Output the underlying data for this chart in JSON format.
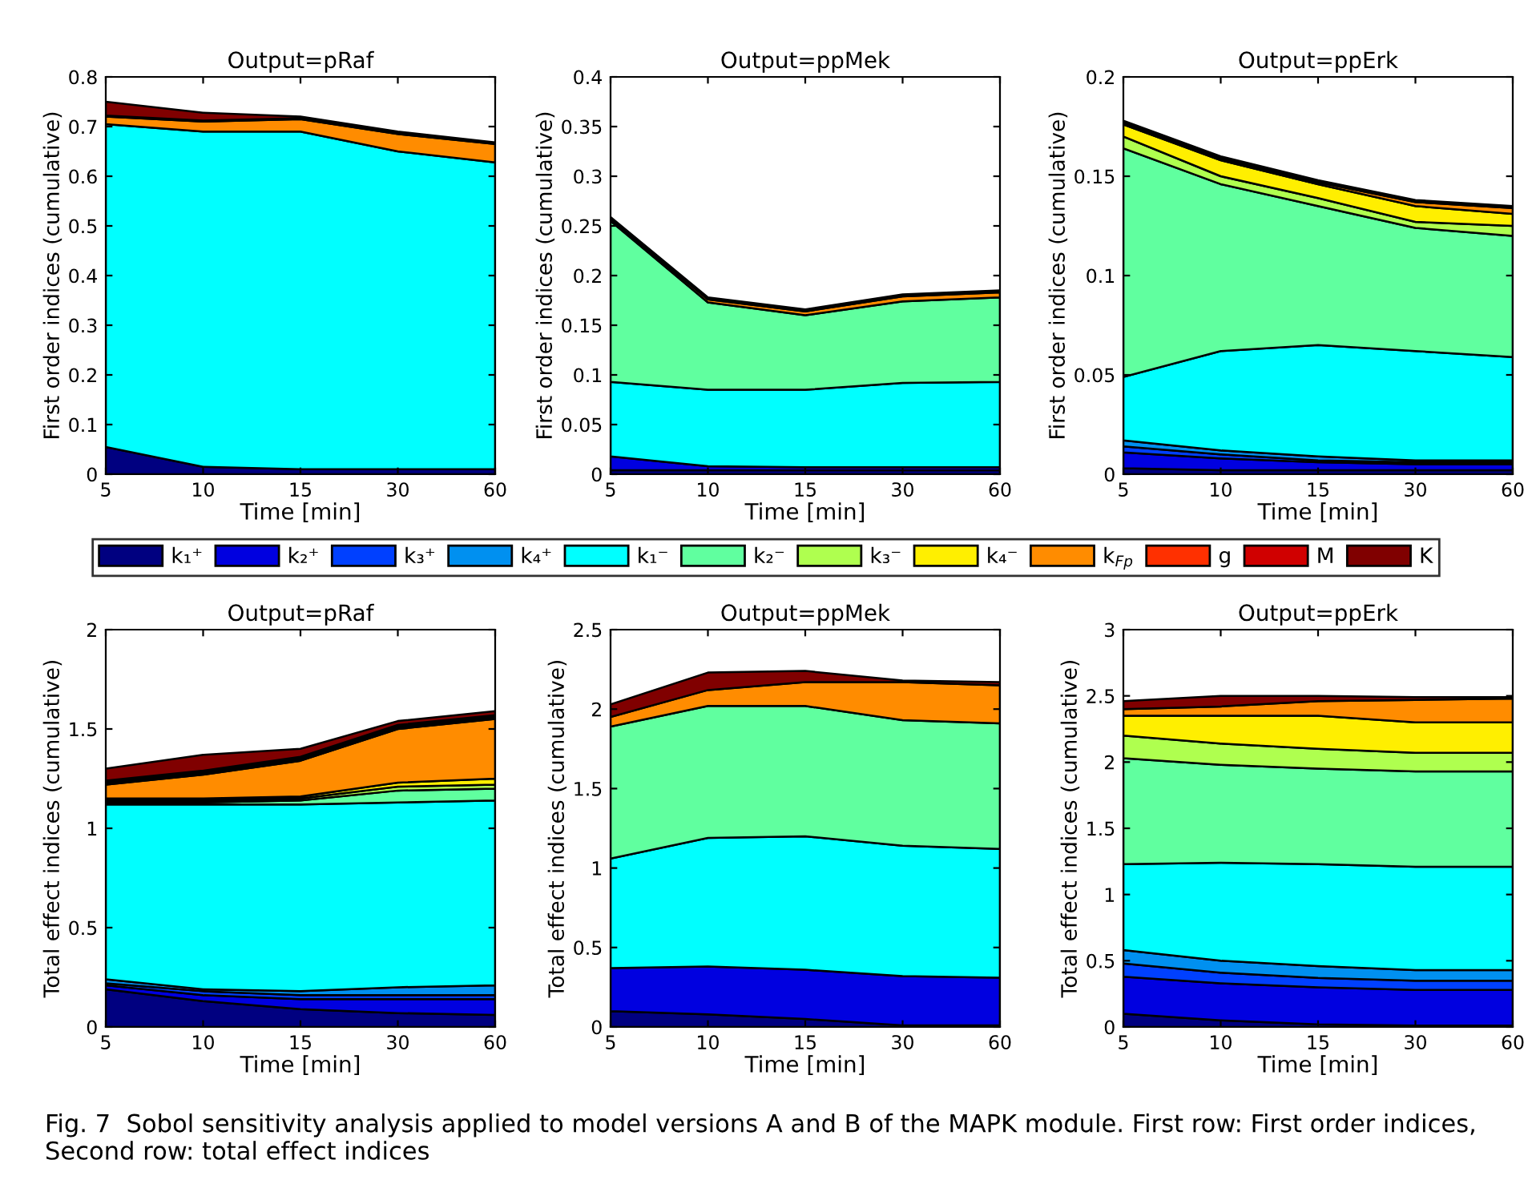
{
  "chart_data": [
    {
      "type": "area",
      "stacked": true,
      "title": "Output=pRaf",
      "xlabel": "Time [min]",
      "ylabel": "First order indices (cumulative)",
      "categories": [
        "5",
        "10",
        "15",
        "30",
        "60"
      ],
      "ylim": [
        0,
        0.8
      ],
      "yticks": [
        0,
        0.1,
        0.2,
        0.3,
        0.4,
        0.5,
        0.6,
        0.7,
        0.8
      ],
      "legend": "bottom",
      "series": [
        {
          "name": "k₁⁺",
          "color": "#000080",
          "values": [
            0.055,
            0.015,
            0.01,
            0.01,
            0.01
          ]
        },
        {
          "name": "k₂⁺",
          "color": "#0000e0",
          "values": [
            null,
            null,
            null,
            null,
            null
          ]
        },
        {
          "name": "k₃⁺",
          "color": "#0040ff",
          "values": [
            null,
            null,
            null,
            null,
            null
          ]
        },
        {
          "name": "k₄⁺",
          "color": "#0090f0",
          "values": [
            null,
            null,
            null,
            null,
            null
          ]
        },
        {
          "name": "k₁⁻",
          "color": "#00ffff",
          "values": [
            0.65,
            0.675,
            0.68,
            0.64,
            0.618
          ]
        },
        {
          "name": "k₂⁻",
          "color": "#60ff9f",
          "values": [
            null,
            null,
            null,
            null,
            null
          ]
        },
        {
          "name": "k₃⁻",
          "color": "#afff4f",
          "values": [
            null,
            null,
            null,
            null,
            null
          ]
        },
        {
          "name": "k₄⁻",
          "color": "#ffef00",
          "values": [
            null,
            null,
            null,
            null,
            null
          ]
        },
        {
          "name": "k$_{Fp}$",
          "color": "#ff8c00",
          "values": [
            0.015,
            0.02,
            0.025,
            0.035,
            0.037
          ]
        },
        {
          "name": "g",
          "color": "#ff3000",
          "values": [
            null,
            null,
            null,
            null,
            null
          ]
        },
        {
          "name": "M",
          "color": "#d00000",
          "values": [
            0.002,
            0.002,
            0.002,
            0.002,
            0.002
          ]
        },
        {
          "name": "K",
          "color": "#800000",
          "values": [
            0.028,
            0.016,
            0.003,
            0.003,
            0.001
          ]
        }
      ]
    },
    {
      "type": "area",
      "stacked": true,
      "title": "Output=ppMek",
      "xlabel": "Time [min]",
      "ylabel": "First order indices (cumulative)",
      "categories": [
        "5",
        "10",
        "15",
        "30",
        "60"
      ],
      "ylim": [
        0,
        0.4
      ],
      "yticks": [
        0,
        0.05,
        0.1,
        0.15,
        0.2,
        0.25,
        0.3,
        0.35,
        0.4
      ],
      "series": [
        {
          "color": "#000080",
          "values": [
            0.004,
            0.004,
            0.004,
            0.004,
            0.004
          ]
        },
        {
          "color": "#0000e0",
          "values": [
            0.014,
            0.004,
            0.003,
            0.003,
            0.003
          ]
        },
        {
          "color": "#00ffff",
          "values": [
            0.075,
            0.077,
            0.078,
            0.085,
            0.086
          ]
        },
        {
          "color": "#60ff9f",
          "values": [
            0.162,
            0.088,
            0.075,
            0.082,
            0.085
          ]
        },
        {
          "color": "#ff8c00",
          "values": [
            0.002,
            0.003,
            0.004,
            0.005,
            0.005
          ]
        },
        {
          "color": "#800000",
          "values": [
            0.002,
            0.002,
            0.002,
            0.002,
            0.002
          ]
        }
      ]
    },
    {
      "type": "area",
      "stacked": true,
      "title": "Output=ppErk",
      "xlabel": "Time [min]",
      "ylabel": "First order indices (cumulative)",
      "categories": [
        "5",
        "10",
        "15",
        "30",
        "60"
      ],
      "ylim": [
        0,
        0.2
      ],
      "yticks": [
        0,
        0.05,
        0.1,
        0.15,
        0.2
      ],
      "series": [
        {
          "color": "#000080",
          "values": [
            0.003,
            0.002,
            0.002,
            0.002,
            0.002
          ]
        },
        {
          "color": "#0000e0",
          "values": [
            0.008,
            0.006,
            0.004,
            0.003,
            0.003
          ]
        },
        {
          "color": "#0040ff",
          "values": [
            0.003,
            0.002,
            0.001,
            0.001,
            0.001
          ]
        },
        {
          "color": "#0090f0",
          "values": [
            0.003,
            0.002,
            0.002,
            0.001,
            0.001
          ]
        },
        {
          "color": "#00ffff",
          "values": [
            0.032,
            0.05,
            0.056,
            0.055,
            0.052
          ]
        },
        {
          "color": "#60ff9f",
          "values": [
            0.115,
            0.084,
            0.07,
            0.062,
            0.061
          ]
        },
        {
          "color": "#afff4f",
          "values": [
            0.006,
            0.004,
            0.004,
            0.003,
            0.005
          ]
        },
        {
          "color": "#ffef00",
          "values": [
            0.006,
            0.008,
            0.007,
            0.008,
            0.006
          ]
        },
        {
          "color": "#ff8c00",
          "values": [
            0.001,
            0.001,
            0.001,
            0.002,
            0.003
          ]
        },
        {
          "color": "#800000",
          "values": [
            0.001,
            0.001,
            0.001,
            0.001,
            0.001
          ]
        }
      ]
    },
    {
      "type": "area",
      "stacked": true,
      "title": "Output=pRaf",
      "xlabel": "Time [min]",
      "ylabel": "Total effect indices (cumulative)",
      "categories": [
        "5",
        "10",
        "15",
        "30",
        "60"
      ],
      "ylim": [
        0,
        2
      ],
      "yticks": [
        0,
        0.5,
        1,
        1.5,
        2
      ],
      "series": [
        {
          "color": "#000080",
          "values": [
            0.19,
            0.13,
            0.09,
            0.07,
            0.06
          ]
        },
        {
          "color": "#0000e0",
          "values": [
            0.02,
            0.03,
            0.05,
            0.07,
            0.08
          ]
        },
        {
          "color": "#0040ff",
          "values": [
            0.01,
            0.02,
            0.02,
            0.02,
            0.02
          ]
        },
        {
          "color": "#0090f0",
          "values": [
            0.02,
            0.01,
            0.02,
            0.04,
            0.05
          ]
        },
        {
          "color": "#00ffff",
          "values": [
            0.88,
            0.93,
            0.94,
            0.93,
            0.93
          ]
        },
        {
          "color": "#60ff9f",
          "values": [
            0.01,
            0.01,
            0.02,
            0.06,
            0.06
          ]
        },
        {
          "color": "#afff4f",
          "values": [
            0.01,
            0.01,
            0.01,
            0.02,
            0.02
          ]
        },
        {
          "color": "#ffef00",
          "values": [
            0.01,
            0.01,
            0.01,
            0.02,
            0.03
          ]
        },
        {
          "color": "#ff8c00",
          "values": [
            0.07,
            0.12,
            0.18,
            0.27,
            0.3
          ]
        },
        {
          "color": "#ff3000",
          "values": [
            0.01,
            0.01,
            0.01,
            0.01,
            0.01
          ]
        },
        {
          "color": "#d00000",
          "values": [
            0.01,
            0.01,
            0.01,
            0.01,
            0.01
          ]
        },
        {
          "color": "#800000",
          "values": [
            0.06,
            0.08,
            0.04,
            0.02,
            0.02
          ]
        }
      ]
    },
    {
      "type": "area",
      "stacked": true,
      "title": "Output=ppMek",
      "xlabel": "Time [min]",
      "ylabel": "Total effect indices (cumulative)",
      "categories": [
        "5",
        "10",
        "15",
        "30",
        "60"
      ],
      "ylim": [
        0,
        2.5
      ],
      "yticks": [
        0,
        0.5,
        1,
        1.5,
        2,
        2.5
      ],
      "series": [
        {
          "color": "#000080",
          "values": [
            0.1,
            0.08,
            0.05,
            0.01,
            0.01
          ]
        },
        {
          "color": "#0000e0",
          "values": [
            0.27,
            0.3,
            0.31,
            0.31,
            0.3
          ]
        },
        {
          "color": "#00ffff",
          "values": [
            0.69,
            0.81,
            0.84,
            0.82,
            0.81
          ]
        },
        {
          "color": "#60ff9f",
          "values": [
            0.83,
            0.83,
            0.82,
            0.79,
            0.79
          ]
        },
        {
          "color": "#ff8c00",
          "values": [
            0.06,
            0.1,
            0.15,
            0.24,
            0.24
          ]
        },
        {
          "color": "#800000",
          "values": [
            0.08,
            0.11,
            0.07,
            0.01,
            0.02
          ]
        }
      ]
    },
    {
      "type": "area",
      "stacked": true,
      "title": "Output=ppErk",
      "xlabel": "Time [min]",
      "ylabel": "Total effect indices (cumulative)",
      "categories": [
        "5",
        "10",
        "15",
        "30",
        "60"
      ],
      "ylim": [
        0,
        3
      ],
      "yticks": [
        0,
        0.5,
        1,
        1.5,
        2,
        2.5,
        3
      ],
      "annotations": [
        "Fig. 7  Sobol sensitivity analysis applied to model versions A and B of the MAPK module. First row: First order indices, Second row: total effect indices"
      ],
      "series": [
        {
          "color": "#000080",
          "values": [
            0.1,
            0.05,
            0.02,
            0.01,
            0.01
          ]
        },
        {
          "color": "#0000e0",
          "values": [
            0.28,
            0.28,
            0.28,
            0.27,
            0.27
          ]
        },
        {
          "color": "#0040ff",
          "values": [
            0.1,
            0.08,
            0.07,
            0.07,
            0.07
          ]
        },
        {
          "color": "#0090f0",
          "values": [
            0.1,
            0.09,
            0.09,
            0.08,
            0.08
          ]
        },
        {
          "color": "#00ffff",
          "values": [
            0.65,
            0.74,
            0.77,
            0.78,
            0.78
          ]
        },
        {
          "color": "#60ff9f",
          "values": [
            0.8,
            0.74,
            0.72,
            0.72,
            0.72
          ]
        },
        {
          "color": "#afff4f",
          "values": [
            0.17,
            0.16,
            0.15,
            0.14,
            0.14
          ]
        },
        {
          "color": "#ffef00",
          "values": [
            0.15,
            0.21,
            0.25,
            0.23,
            0.23
          ]
        },
        {
          "color": "#ff8c00",
          "values": [
            0.05,
            0.07,
            0.11,
            0.17,
            0.18
          ]
        },
        {
          "color": "#800000",
          "values": [
            0.06,
            0.08,
            0.04,
            0.02,
            0.01
          ]
        }
      ]
    }
  ]
}
